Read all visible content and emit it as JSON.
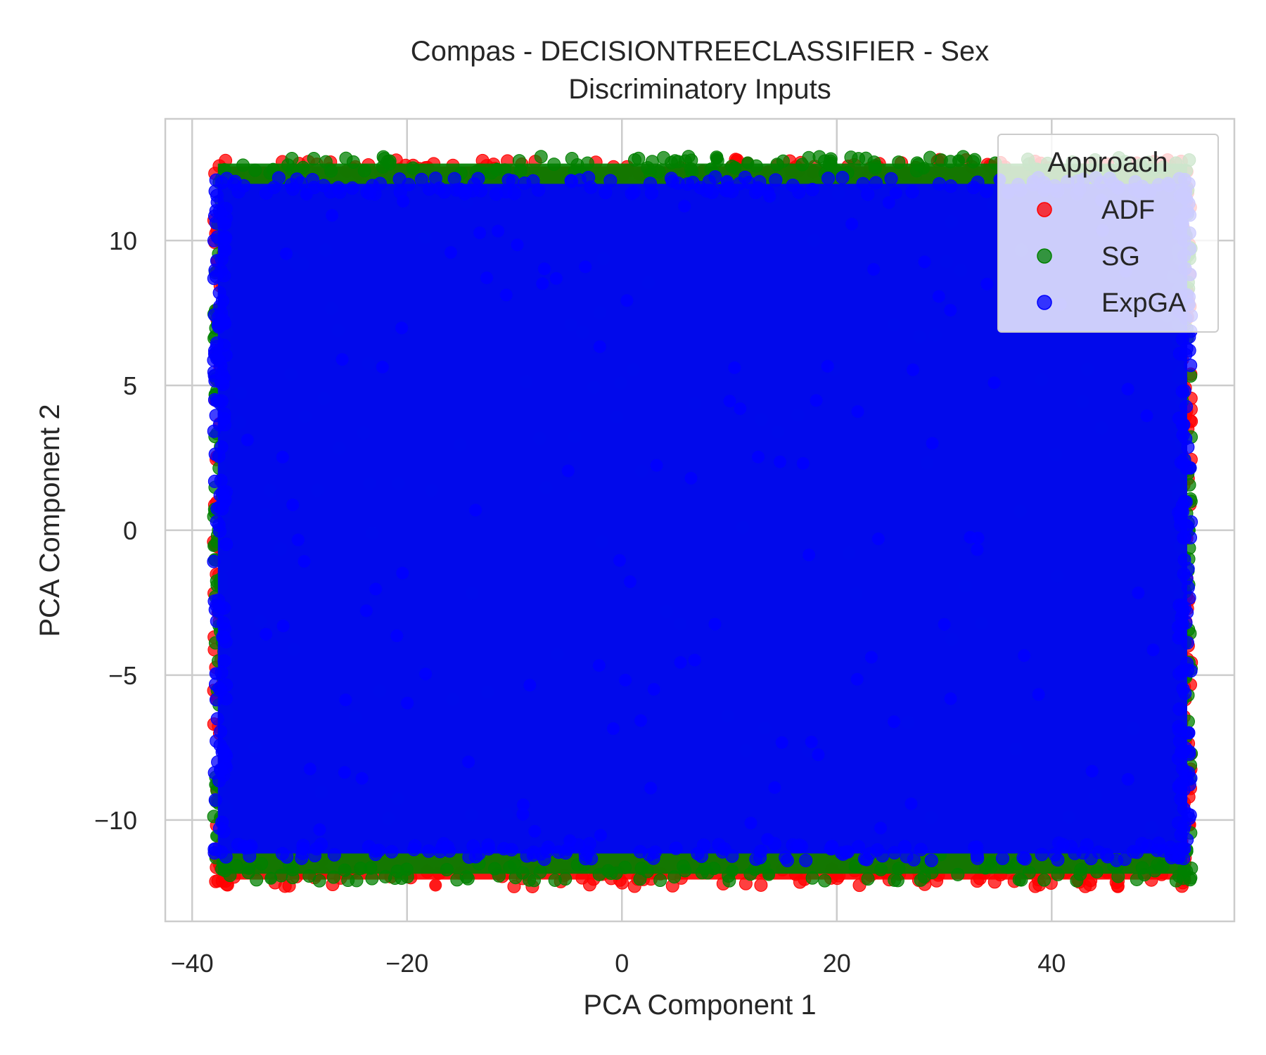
{
  "chart_data": {
    "type": "scatter",
    "title": "Compas - DECISIONTREECLASSIFIER - Sex",
    "subtitle": "Discriminatory Inputs",
    "xlabel": "PCA Component 1",
    "ylabel": "PCA Component 2",
    "xlim": [
      -42.5,
      57
    ],
    "ylim": [
      -13.5,
      14.2
    ],
    "x_ticks": [
      -40,
      -20,
      0,
      20,
      40
    ],
    "y_ticks": [
      -10,
      -5,
      0,
      5,
      10
    ],
    "x_tick_labels": [
      "−40",
      "−20",
      "0",
      "20",
      "40"
    ],
    "y_tick_labels": [
      "−10",
      "−5",
      "0",
      "5",
      "10"
    ],
    "grid": true,
    "legend": {
      "title": "Approach",
      "placement": "top-right"
    },
    "series": [
      {
        "name": "ADF",
        "color": "#ff0000",
        "x_range": [
          -38,
          53
        ],
        "y_range": [
          -12.3,
          12.8
        ]
      },
      {
        "name": "SG",
        "color": "#008000",
        "x_range": [
          -38,
          53
        ],
        "y_range": [
          -12.1,
          12.9
        ]
      },
      {
        "name": "ExpGA",
        "color": "#0000ff",
        "x_range": [
          -38,
          53
        ],
        "y_range": [
          -11.4,
          12.2
        ]
      }
    ]
  }
}
